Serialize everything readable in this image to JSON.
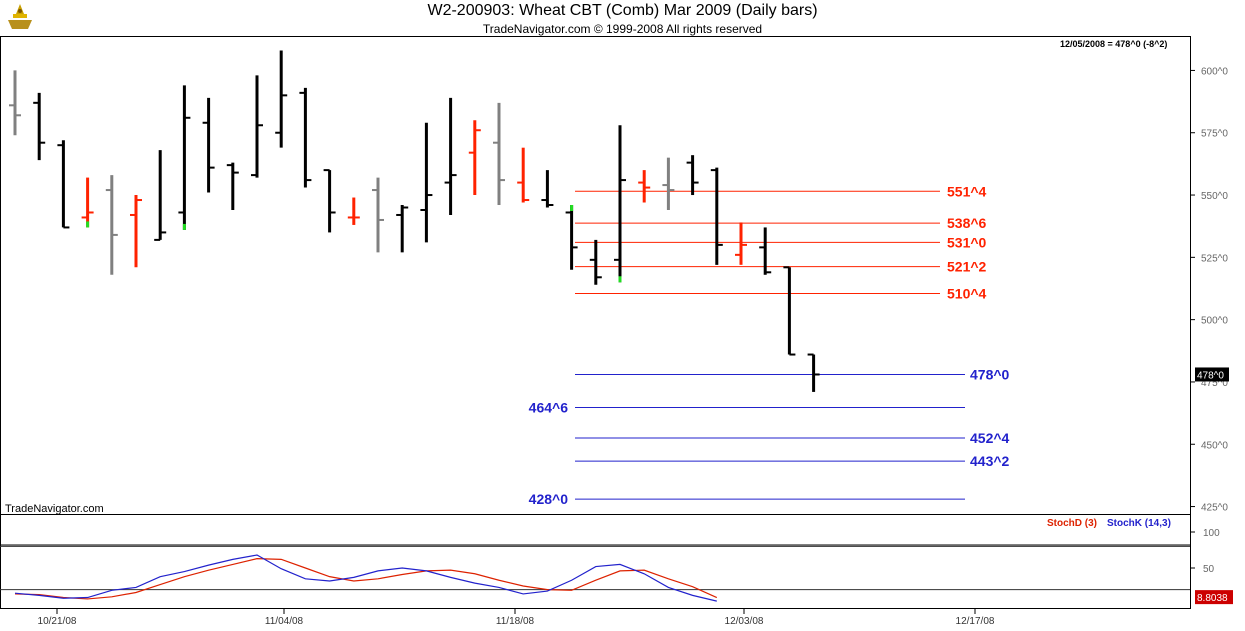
{
  "header": {
    "title": "W2-200903:  Wheat CBT (Comb) Mar 2009  (Daily bars)",
    "copyright": "TradeNavigator.com © 1999-2008 All rights reserved",
    "status": "12/05/2008 = 478^0 (-8^2)",
    "watermark": "TradeNavigator.com"
  },
  "chart_data": [
    {
      "type": "ohlc",
      "title": "W2-200903:  Wheat CBT (Comb) Mar 2009  (Daily bars)",
      "y_ticks": [
        "600^0",
        "575^0",
        "550^0",
        "525^0",
        "500^0",
        "475^0",
        "450^0",
        "425^0"
      ],
      "y_tick_values": [
        600,
        575,
        550,
        525,
        500,
        475,
        450,
        425
      ],
      "ylim": [
        418,
        615
      ],
      "x_ticks": [
        "10/21/08",
        "11/04/08",
        "11/18/08",
        "12/03/08",
        "12/17/08"
      ],
      "last_price_label": "478^0",
      "colors": {
        "up": "#000000",
        "down_red": "#ff2200",
        "neutral": "#808080",
        "extreme": "#22dd22"
      },
      "bars": [
        {
          "o": 586,
          "h": 600,
          "l": 574,
          "c": 582,
          "color": "#808080"
        },
        {
          "o": 587,
          "h": 591,
          "l": 564,
          "c": 571,
          "color": "#000000"
        },
        {
          "o": 570,
          "h": 572,
          "l": 537,
          "c": 537,
          "color": "#000000"
        },
        {
          "o": 541,
          "h": 557,
          "l": 537,
          "c": 543,
          "color": "#ff2200",
          "extreme": "low"
        },
        {
          "o": 552,
          "h": 558,
          "l": 518,
          "c": 534,
          "color": "#808080"
        },
        {
          "o": 542,
          "h": 550,
          "l": 521,
          "c": 548,
          "color": "#ff2200"
        },
        {
          "o": 532,
          "h": 568,
          "l": 532,
          "c": 535,
          "color": "#000000"
        },
        {
          "o": 543,
          "h": 594,
          "l": 536,
          "c": 581,
          "color": "#000000",
          "extreme": "low"
        },
        {
          "o": 579,
          "h": 589,
          "l": 551,
          "c": 561,
          "color": "#000000"
        },
        {
          "o": 562,
          "h": 563,
          "l": 544,
          "c": 559,
          "color": "#000000"
        },
        {
          "o": 558,
          "h": 598,
          "l": 557,
          "c": 578,
          "color": "#000000"
        },
        {
          "o": 575,
          "h": 608,
          "l": 569,
          "c": 590,
          "color": "#000000"
        },
        {
          "o": 591,
          "h": 593,
          "l": 553,
          "c": 556,
          "color": "#000000"
        },
        {
          "o": 560,
          "h": 560,
          "l": 535,
          "c": 543,
          "color": "#000000"
        },
        {
          "o": 541,
          "h": 549,
          "l": 538,
          "c": 541,
          "color": "#ff2200"
        },
        {
          "o": 552,
          "h": 557,
          "l": 527,
          "c": 540,
          "color": "#808080"
        },
        {
          "o": 542,
          "h": 546,
          "l": 527,
          "c": 545,
          "color": "#000000"
        },
        {
          "o": 544,
          "h": 579,
          "l": 531,
          "c": 550,
          "color": "#000000"
        },
        {
          "o": 555,
          "h": 589,
          "l": 542,
          "c": 558,
          "color": "#000000"
        },
        {
          "o": 567,
          "h": 580,
          "l": 550,
          "c": 576,
          "color": "#ff2200"
        },
        {
          "o": 571,
          "h": 587,
          "l": 546,
          "c": 556,
          "color": "#808080"
        },
        {
          "o": 555,
          "h": 569,
          "l": 547,
          "c": 548,
          "color": "#ff2200"
        },
        {
          "o": 548,
          "h": 560,
          "l": 545,
          "c": 546,
          "color": "#000000"
        },
        {
          "o": 543,
          "h": 546,
          "l": 520,
          "c": 529,
          "color": "#000000",
          "extreme": "high"
        },
        {
          "o": 524,
          "h": 532,
          "l": 514,
          "c": 517,
          "color": "#000000"
        },
        {
          "o": 524,
          "h": 578,
          "l": 515,
          "c": 556,
          "color": "#000000",
          "extreme": "low"
        },
        {
          "o": 555,
          "h": 560,
          "l": 547,
          "c": 553,
          "color": "#ff2200"
        },
        {
          "o": 554,
          "h": 565,
          "l": 544,
          "c": 552,
          "color": "#808080"
        },
        {
          "o": 563,
          "h": 566,
          "l": 550,
          "c": 555,
          "color": "#000000"
        },
        {
          "o": 560,
          "h": 561,
          "l": 522,
          "c": 530,
          "color": "#000000"
        },
        {
          "o": 526,
          "h": 539,
          "l": 522,
          "c": 530,
          "color": "#ff2200"
        },
        {
          "o": 529,
          "h": 537,
          "l": 518,
          "c": 519,
          "color": "#000000"
        },
        {
          "o": 521,
          "h": 521,
          "l": 486,
          "c": 486,
          "color": "#000000"
        },
        {
          "o": 486,
          "h": 486,
          "l": 471,
          "c": 478,
          "color": "#000000"
        }
      ],
      "levels": [
        {
          "value": 551.5,
          "label": "551^4",
          "color": "#ff2200"
        },
        {
          "value": 538.75,
          "label": "538^6",
          "color": "#ff2200"
        },
        {
          "value": 531.0,
          "label": "531^0",
          "color": "#ff2200"
        },
        {
          "value": 521.25,
          "label": "521^2",
          "color": "#ff2200"
        },
        {
          "value": 510.5,
          "label": "510^4",
          "color": "#ff2200"
        },
        {
          "value": 478.0,
          "label": "478^0",
          "color": "#2222cc"
        },
        {
          "value": 464.75,
          "label": "464^6",
          "color": "#2222cc"
        },
        {
          "value": 452.5,
          "label": "452^4",
          "color": "#2222cc"
        },
        {
          "value": 443.25,
          "label": "443^2",
          "color": "#2222cc"
        },
        {
          "value": 428.0,
          "label": "428^0",
          "color": "#2222cc"
        }
      ]
    },
    {
      "type": "line",
      "legend": [
        "StochD (3)",
        "StochK (14,3)"
      ],
      "y_ticks": [
        "100",
        "50"
      ],
      "y_tick_values": [
        100,
        50
      ],
      "ylim": [
        0,
        110
      ],
      "reference_lines": [
        80,
        20
      ],
      "last_value_label": "8.8038",
      "series": [
        {
          "name": "StochD (3)",
          "color": "#dd2200",
          "values": [
            14,
            13,
            9,
            7,
            10,
            16,
            27,
            38,
            47,
            55,
            63,
            62,
            50,
            38,
            32,
            35,
            41,
            46,
            47,
            42,
            33,
            25,
            20,
            19,
            33,
            46,
            47,
            35,
            24,
            9
          ]
        },
        {
          "name": "StochK (14,3)",
          "color": "#2222cc",
          "values": [
            15,
            12,
            8,
            9,
            19,
            23,
            38,
            45,
            54,
            62,
            68,
            49,
            35,
            32,
            37,
            46,
            50,
            46,
            37,
            29,
            23,
            14,
            18,
            33,
            52,
            55,
            42,
            23,
            12,
            4
          ]
        }
      ]
    }
  ]
}
